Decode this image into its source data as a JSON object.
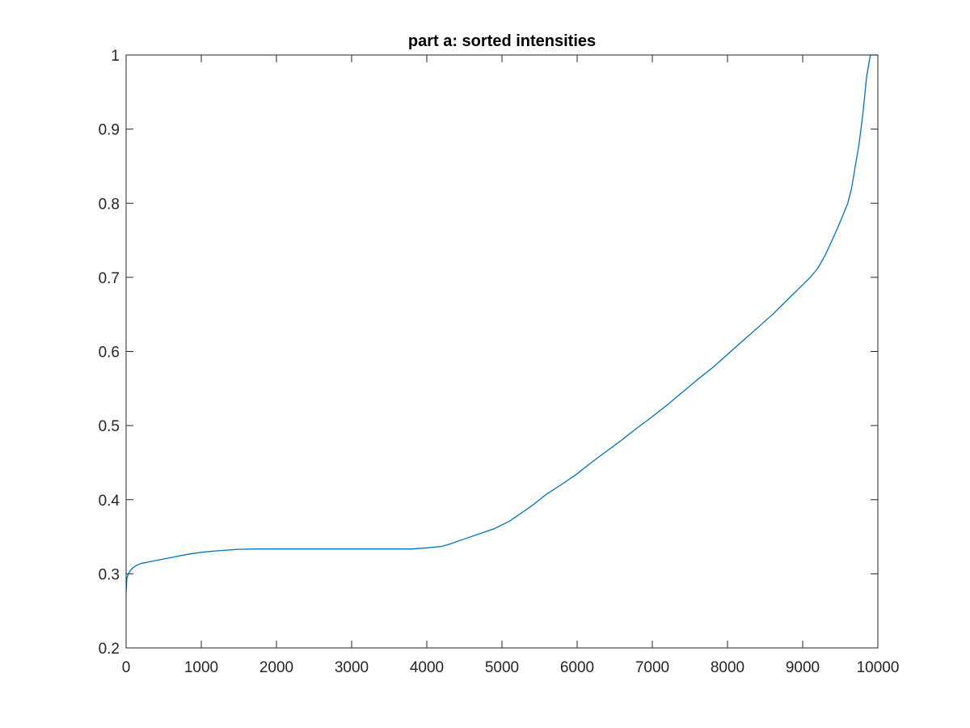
{
  "chart_data": {
    "type": "line",
    "title": "part a: sorted intensities",
    "xlabel": "",
    "ylabel": "",
    "xlim": [
      0,
      10000
    ],
    "ylim": [
      0.2,
      1
    ],
    "xticks": [
      0,
      1000,
      2000,
      3000,
      4000,
      5000,
      6000,
      7000,
      8000,
      9000,
      10000
    ],
    "yticks": [
      0.2,
      0.3,
      0.4,
      0.5,
      0.6,
      0.7,
      0.8,
      0.9,
      1
    ],
    "xtick_labels": [
      "0",
      "1000",
      "2000",
      "3000",
      "4000",
      "5000",
      "6000",
      "7000",
      "8000",
      "9000",
      "10000"
    ],
    "ytick_labels": [
      "0.2",
      "0.3",
      "0.4",
      "0.5",
      "0.6",
      "0.7",
      "0.8",
      "0.9",
      "1"
    ],
    "grid": false,
    "box": true,
    "series": [
      {
        "color": "#0072BD",
        "x": [
          0,
          10,
          30,
          60,
          100,
          150,
          200,
          300,
          400,
          600,
          800,
          1000,
          1200,
          1500,
          1700,
          2000,
          2500,
          3000,
          3500,
          3800,
          4000,
          4200,
          4300,
          4500,
          4700,
          4900,
          5000,
          5100,
          5200,
          5400,
          5600,
          5800,
          6000,
          6200,
          6400,
          6600,
          6800,
          7000,
          7200,
          7400,
          7600,
          7800,
          8000,
          8200,
          8400,
          8600,
          8800,
          9000,
          9100,
          9200,
          9300,
          9400,
          9500,
          9600,
          9650,
          9700,
          9750,
          9800,
          9850,
          9900,
          9930,
          9960,
          10000
        ],
        "y": [
          0.275,
          0.294,
          0.3,
          0.305,
          0.309,
          0.312,
          0.314,
          0.316,
          0.318,
          0.322,
          0.326,
          0.329,
          0.331,
          0.333,
          0.3335,
          0.3335,
          0.3335,
          0.3335,
          0.3335,
          0.3335,
          0.335,
          0.337,
          0.34,
          0.347,
          0.354,
          0.361,
          0.366,
          0.371,
          0.378,
          0.392,
          0.408,
          0.421,
          0.435,
          0.451,
          0.466,
          0.481,
          0.497,
          0.512,
          0.528,
          0.545,
          0.562,
          0.578,
          0.596,
          0.614,
          0.632,
          0.65,
          0.67,
          0.69,
          0.7,
          0.712,
          0.73,
          0.752,
          0.775,
          0.8,
          0.82,
          0.85,
          0.88,
          0.92,
          0.97,
          1.0,
          1.0,
          1.0,
          1.0
        ]
      }
    ]
  }
}
